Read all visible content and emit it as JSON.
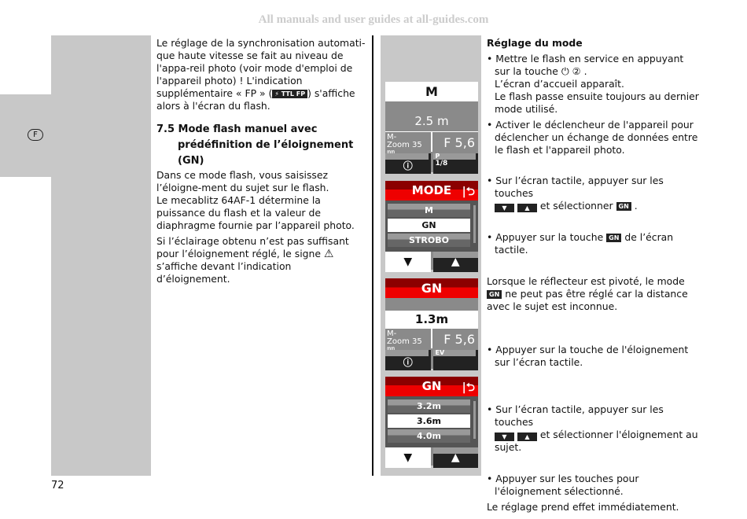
{
  "watermark": "All manuals and user guides at all-guides.com",
  "language_tab": "F",
  "page_number": "72",
  "left": {
    "p1": "Le réglage de la synchronisation automati-que haute vitesse se fait au niveau de l'appa-reil photo (voir mode d'emploi de l'appareil photo) ! L'indication supplémentaire « FP » (",
    "p1_badge": "⚡ TTL FP",
    "p1_end": ") s'affiche alors à l'écran du flash.",
    "heading": "7.5 Mode flash manuel avec prédéfinition de l’éloignement (GN)",
    "p2": "Dans ce mode flash, vous saisissez l’éloigne-ment du sujet sur le flash.",
    "p3": "Le mecablitz 64AF-1 détermine la puissance du flash et la valeur de diaphragme fournie par l’appareil photo.",
    "p4a": "Si l’éclairage obtenu n’est pas suffisant pour l’éloignement réglé, le signe ",
    "p4_icon": "⚠",
    "p4b": " s’affiche devant l’indication d’éloignement."
  },
  "right": {
    "title": "Réglage du mode",
    "b1": "• Mettre le flash en service en appuyant sur la touche ⏻ ② .",
    "b1a": "L’écran d’accueil apparaît.",
    "b1b": "Le flash passe ensuite toujours au dernier mode utilisé.",
    "b2": "• Activer le déclencheur de l'appareil pour déclencher un échange de données entre le flash et l'appareil photo.",
    "b3a": "• Sur l’écran tactile, appuyer sur les touches",
    "down": "▼",
    "up": "▲",
    "b3b": " et sélectionner ",
    "gn": "GN",
    "b4a": "• Appuyer sur la touche ",
    "b4b": " de l’écran tactile.",
    "p5a": "Lorsque le réflecteur est pivoté, le mode ",
    "p5b": " ne peut pas être réglé car la distance avec le sujet est inconnue.",
    "b5": "• Appuyer sur la touche de l'éloignement sur l’écran tactile.",
    "b6b": " et sélectionner l'éloignement au sujet.",
    "b7": "• Appuyer sur les touches pour l'éloignement sélectionné.",
    "last": "Le réglage prend effet immédiatement."
  },
  "screens": {
    "s1": {
      "mode": "M",
      "distance": "2.5 m",
      "zoom_label": "M-",
      "zoom": "Zoom 35 ㎜",
      "aperture": "F 5,6",
      "info_icon": "ⓘ",
      "right_label": "P",
      "right_value": "1/8"
    },
    "s2": {
      "title": "MODE",
      "back": "|⮌",
      "items": [
        "M",
        "GN",
        "STROBO"
      ],
      "selected": "GN"
    },
    "s3": {
      "mode": "GN",
      "distance": "1.3m",
      "zoom_label": "M-",
      "zoom": "Zoom 35 ㎜",
      "aperture": "F 5,6",
      "info_icon": "ⓘ",
      "right_label": "EV"
    },
    "s4": {
      "title": "GN",
      "back": "|⮌",
      "items": [
        "3.2m",
        "3.6m",
        "4.0m"
      ],
      "selected": "3.6m"
    }
  }
}
